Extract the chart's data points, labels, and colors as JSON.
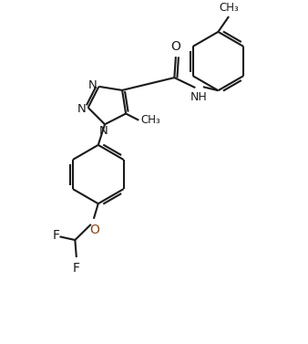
{
  "background_color": "#ffffff",
  "line_color": "#1a1a1a",
  "n_color": "#1a1a1a",
  "o_color": "#8B4513",
  "lw": 1.5,
  "figsize": [
    3.38,
    3.77
  ],
  "dpi": 100,
  "xlim": [
    -0.5,
    9.5
  ],
  "ylim": [
    -1.5,
    10.5
  ]
}
